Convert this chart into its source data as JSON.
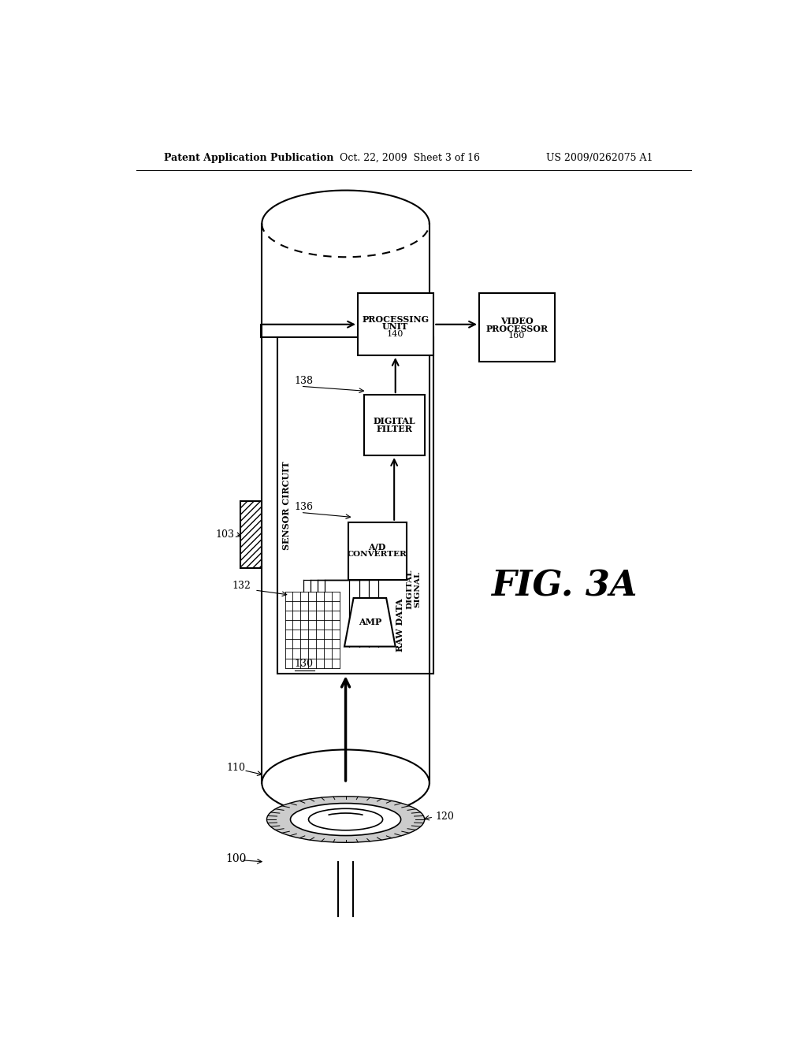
{
  "bg_color": "#ffffff",
  "header_left": "Patent Application Publication",
  "header_mid": "Oct. 22, 2009  Sheet 3 of 16",
  "header_right": "US 2009/0262075 A1",
  "fig_label": "FIG. 3A",
  "lw": 1.5
}
